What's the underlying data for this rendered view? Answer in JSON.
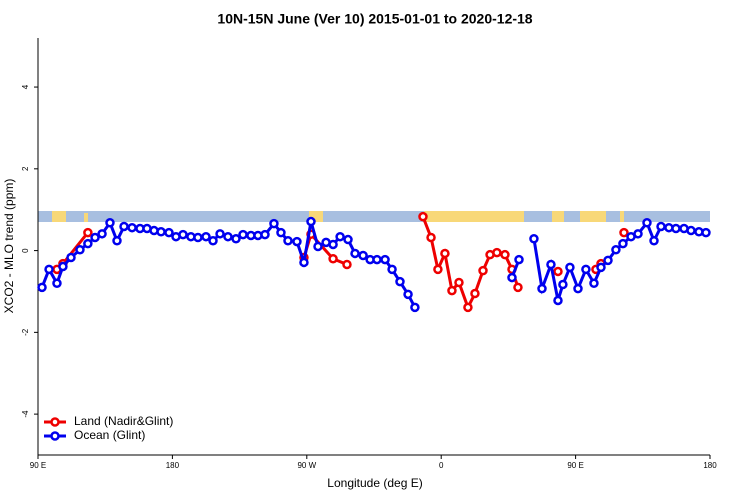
{
  "chart_data": {
    "type": "line",
    "title": "10N-15N June (Ver 10)   2015-01-01 to 2020-12-18",
    "x_label": "Longitude (deg E)",
    "y_label": "XCO2 - MLO trend (ppm)",
    "xlim": [
      90,
      540
    ],
    "xticks": [
      {
        "value": 90,
        "label": "90 E"
      },
      180,
      {
        "value": 270,
        "label": "90 W"
      },
      {
        "value": 360,
        "label": "0"
      },
      {
        "value": 450,
        "label": "90 E"
      },
      {
        "value": 540,
        "label": "180"
      }
    ],
    "ylim": [
      -5,
      5.2
    ],
    "yticks": [
      -4,
      -2,
      0,
      2,
      4
    ],
    "legend": "bottom-left",
    "series": [
      {
        "name": "Land (Nadir&Glint)",
        "color": "#ee0000",
        "x": [
          102.7,
          106.7,
          123.4,
          null,
          268.1,
          272.8,
          287.6,
          296.9,
          null,
          347.8,
          353.2,
          357.8,
          362.5,
          367.2,
          371.9,
          377.9,
          382.6,
          388.0,
          392.7,
          397.3,
          402.7,
          407.4,
          411.4,
          null,
          438.2,
          null,
          463.6,
          467.0,
          null,
          482.4
        ],
        "values": [
          -0.46,
          -0.32,
          0.44,
          null,
          -0.17,
          0.4,
          -0.2,
          -0.34,
          null,
          0.83,
          0.32,
          -0.46,
          -0.07,
          -0.98,
          -0.78,
          -1.39,
          -1.05,
          -0.49,
          -0.1,
          -0.05,
          -0.1,
          -0.46,
          -0.9,
          null,
          -0.51,
          null,
          -0.46,
          -0.32,
          null,
          0.44
        ]
      },
      {
        "name": "Ocean (Glint)",
        "color": "#0000ee",
        "x": [
          92.7,
          97.4,
          102.7,
          106.7,
          112.1,
          118.1,
          123.4,
          128.2,
          132.9,
          138.2,
          142.9,
          147.6,
          153.0,
          158.3,
          163.0,
          167.7,
          172.4,
          177.7,
          182.4,
          187.1,
          192.4,
          197.1,
          202.5,
          207.2,
          211.9,
          217.2,
          222.6,
          227.3,
          232.6,
          237.3,
          242.0,
          248.0,
          252.7,
          257.4,
          263.4,
          268.1,
          272.8,
          277.5,
          282.9,
          287.6,
          292.3,
          297.6,
          302.3,
          307.7,
          312.4,
          317.0,
          322.4,
          327.1,
          332.4,
          337.8,
          342.4,
          null,
          407.4,
          412.1,
          null,
          422.1,
          427.5,
          433.5,
          438.2,
          441.5,
          446.2,
          451.6,
          456.9,
          462.3,
          467.0,
          471.7,
          477.0,
          481.7,
          487.1,
          491.8,
          497.8,
          502.5,
          507.2,
          512.5,
          517.2,
          522.6,
          527.3,
          532.6,
          537.3
        ],
        "values": [
          -0.9,
          -0.46,
          -0.8,
          -0.39,
          -0.17,
          0.02,
          0.17,
          0.32,
          0.41,
          0.68,
          0.24,
          0.59,
          0.56,
          0.54,
          0.54,
          0.49,
          0.46,
          0.44,
          0.34,
          0.39,
          0.34,
          0.32,
          0.34,
          0.24,
          0.41,
          0.34,
          0.29,
          0.39,
          0.37,
          0.37,
          0.39,
          0.66,
          0.44,
          0.24,
          0.22,
          -0.29,
          0.71,
          0.1,
          0.2,
          0.15,
          0.34,
          0.27,
          -0.07,
          -0.12,
          -0.22,
          -0.22,
          -0.22,
          -0.46,
          -0.76,
          -1.07,
          -1.39,
          null,
          -0.66,
          -0.22,
          null,
          0.29,
          -0.93,
          -0.34,
          -1.22,
          -0.83,
          -0.41,
          -0.93,
          -0.46,
          -0.8,
          -0.41,
          -0.24,
          0.02,
          0.17,
          0.34,
          0.41,
          0.68,
          0.24,
          0.59,
          0.56,
          0.54,
          0.54,
          0.49,
          0.46,
          0.44
        ]
      }
    ]
  }
}
